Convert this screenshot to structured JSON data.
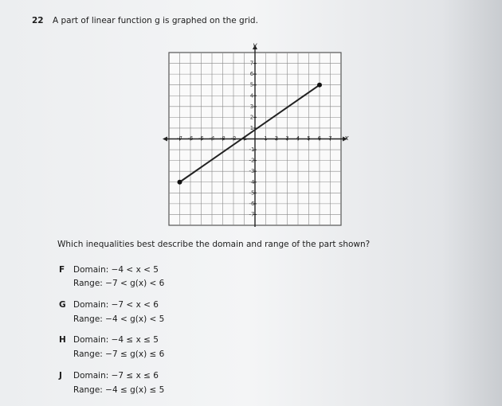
{
  "question": {
    "number": "22",
    "text": "A part of linear function g is graphed on the grid."
  },
  "graph": {
    "x_label": "x",
    "y_label": "y",
    "xlim": [
      -8,
      8
    ],
    "ylim": [
      -8,
      8
    ],
    "xticks": [
      -7,
      -6,
      -5,
      -4,
      -3,
      -2,
      -1,
      1,
      2,
      3,
      4,
      5,
      6,
      7
    ],
    "yticks": [
      7,
      6,
      5,
      4,
      3,
      2,
      1,
      -1,
      -2,
      -3,
      -4,
      -5,
      -6,
      -7
    ],
    "endpoints": [
      [
        -7,
        -4
      ],
      [
        6,
        5
      ]
    ]
  },
  "prompt": "Which inequalities best describe the domain and range of the part shown?",
  "options": [
    {
      "letter": "F",
      "domain": "Domain: −4 < x < 5",
      "range": "Range: −7 < g(x) < 6"
    },
    {
      "letter": "G",
      "domain": "Domain: −7 < x < 6",
      "range": "Range: −4 < g(x) < 5"
    },
    {
      "letter": "H",
      "domain": "Domain: −4 ≤ x ≤ 5",
      "range": "Range: −7 ≤ g(x) ≤ 6"
    },
    {
      "letter": "J",
      "domain": "Domain: −7 ≤ x ≤ 6",
      "range": "Range: −4 ≤ g(x) ≤ 5"
    }
  ]
}
